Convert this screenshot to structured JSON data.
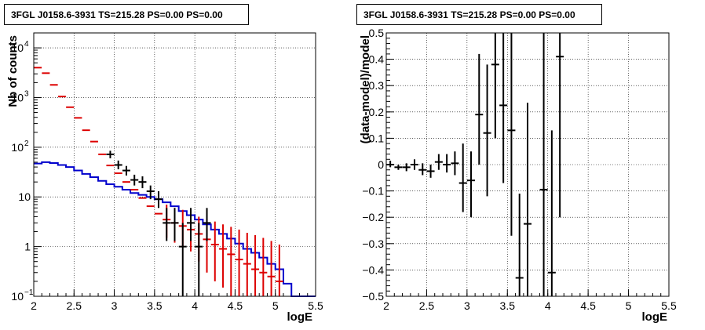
{
  "panels": [
    {
      "title": "3FGL J0158.6-3931 TS=215.28 PS=0.00 PS=0.00"
    },
    {
      "title": "3FGL J0158.6-3931 TS=215.28 PS=0.00 PS=0.00"
    }
  ],
  "chart_data": [
    {
      "type": "line",
      "xlabel": "logE",
      "ylabel": "Nb of counts",
      "log_y": true,
      "xlim": [
        2,
        5.5
      ],
      "ylim": [
        0.1,
        20000
      ],
      "grid": true,
      "x_ticks": [
        "2",
        "2.5",
        "3",
        "3.5",
        "4",
        "4.5",
        "5",
        "5.5"
      ],
      "y_ticks": [
        "10^-1",
        "1",
        "10",
        "10^2",
        "10^3",
        "10^4"
      ],
      "bin_edges": [
        2.0,
        2.1,
        2.2,
        2.3,
        2.4,
        2.5,
        2.6,
        2.7,
        2.8,
        2.9,
        3.0,
        3.1,
        3.2,
        3.3,
        3.4,
        3.5,
        3.6,
        3.7,
        3.8,
        3.9,
        4.0,
        4.1,
        4.2,
        4.3,
        4.4,
        4.5,
        4.6,
        4.7,
        4.8,
        4.9,
        5.0,
        5.1,
        5.2,
        5.3,
        5.4,
        5.5
      ],
      "series": [
        {
          "color": "#0000cc",
          "values": [
            47,
            50,
            48,
            44,
            40,
            34,
            29,
            25,
            21,
            18,
            16,
            14,
            12,
            11,
            10,
            9,
            7.8,
            6.5,
            5.2,
            4.3,
            3.5,
            2.8,
            2.2,
            1.8,
            1.45,
            1.15,
            0.9,
            0.75,
            0.6,
            0.45,
            0.35,
            0.18,
            0.1,
            0.1,
            0.1
          ]
        },
        {
          "color": "#dd0000",
          "points": [
            {
              "x": 2.05,
              "y": 4000
            },
            {
              "x": 2.15,
              "y": 3100
            },
            {
              "x": 2.25,
              "y": 1800
            },
            {
              "x": 2.35,
              "y": 1050
            },
            {
              "x": 2.45,
              "y": 640
            },
            {
              "x": 2.55,
              "y": 390
            },
            {
              "x": 2.65,
              "y": 220
            },
            {
              "x": 2.75,
              "y": 130
            },
            {
              "x": 2.85,
              "y": 72
            },
            {
              "x": 2.95,
              "y": 43
            },
            {
              "x": 3.05,
              "y": 30
            },
            {
              "x": 3.15,
              "y": 20
            },
            {
              "x": 3.25,
              "y": 14
            },
            {
              "x": 3.35,
              "y": 9.5
            },
            {
              "x": 3.45,
              "y": 6.5
            },
            {
              "x": 3.55,
              "y": 4.6
            },
            {
              "x": 3.65,
              "y": 3.5,
              "lo": 1.5,
              "hi": 7
            },
            {
              "x": 3.75,
              "y": 3,
              "lo": 1.2,
              "hi": 6
            },
            {
              "x": 3.85,
              "y": 2.6,
              "lo": 1,
              "hi": 5.5
            },
            {
              "x": 3.95,
              "y": 2.2,
              "lo": 0.8,
              "hi": 4.8
            },
            {
              "x": 4.05,
              "y": 1.8,
              "lo": 0.5,
              "hi": 4
            },
            {
              "x": 4.15,
              "y": 1.4,
              "lo": 0.3,
              "hi": 3.6
            },
            {
              "x": 4.25,
              "y": 1.1,
              "lo": 0.2,
              "hi": 3.2
            },
            {
              "x": 4.35,
              "y": 0.9,
              "lo": 0.15,
              "hi": 2.8
            },
            {
              "x": 4.45,
              "y": 0.7,
              "lo": 0.1,
              "hi": 2.5
            },
            {
              "x": 4.55,
              "y": 0.55,
              "lo": 0.1,
              "hi": 2.2
            },
            {
              "x": 4.65,
              "y": 0.45,
              "lo": 0.1,
              "hi": 1.9
            },
            {
              "x": 4.75,
              "y": 0.35,
              "lo": 0.1,
              "hi": 1.7
            },
            {
              "x": 4.85,
              "y": 0.3,
              "lo": 0.1,
              "hi": 1.5
            },
            {
              "x": 4.95,
              "y": 0.25,
              "lo": 0.1,
              "hi": 1.3
            },
            {
              "x": 5.05,
              "y": 0.2,
              "lo": 0.1,
              "hi": 1.1
            }
          ]
        },
        {
          "color": "#000000",
          "points": [
            {
              "x": 2.95,
              "y": 72,
              "lo": 60,
              "hi": 85
            },
            {
              "x": 3.05,
              "y": 44,
              "lo": 36,
              "hi": 54
            },
            {
              "x": 3.15,
              "y": 34,
              "lo": 27,
              "hi": 42
            },
            {
              "x": 3.25,
              "y": 22,
              "lo": 17,
              "hi": 28
            },
            {
              "x": 3.35,
              "y": 20,
              "lo": 15,
              "hi": 26
            },
            {
              "x": 3.45,
              "y": 13,
              "lo": 9,
              "hi": 17
            },
            {
              "x": 3.55,
              "y": 9,
              "lo": 6,
              "hi": 13
            },
            {
              "x": 3.65,
              "y": 3,
              "lo": 1.3,
              "hi": 6
            },
            {
              "x": 3.75,
              "y": 3,
              "lo": 1.3,
              "hi": 6
            },
            {
              "x": 3.85,
              "y": 1,
              "lo": 0.1,
              "hi": 3
            },
            {
              "x": 3.95,
              "y": 3,
              "lo": 1.3,
              "hi": 6
            },
            {
              "x": 4.05,
              "y": 1,
              "lo": 0.1,
              "hi": 3
            },
            {
              "x": 4.15,
              "y": 3,
              "lo": 1.3,
              "hi": 6
            }
          ]
        }
      ]
    },
    {
      "type": "scatter",
      "xlabel": "logE",
      "ylabel": "(data-model)/model",
      "xlim": [
        2,
        5.5
      ],
      "ylim": [
        -0.5,
        0.5
      ],
      "grid": true,
      "x_ticks": [
        "2",
        "2.5",
        "3",
        "3.5",
        "4",
        "4.5",
        "5",
        "5.5"
      ],
      "y_ticks": [
        "−0.5",
        "−0.4",
        "−0.3",
        "−0.2",
        "−0.1",
        "0",
        "0.1",
        "0.2",
        "0.3",
        "0.4",
        "0.5"
      ],
      "series": [
        {
          "color": "#000000",
          "points": [
            {
              "x": 2.05,
              "y": 0.0,
              "lo": -0.01,
              "hi": 0.015
            },
            {
              "x": 2.15,
              "y": -0.01,
              "lo": -0.02,
              "hi": 0.0
            },
            {
              "x": 2.25,
              "y": -0.01,
              "lo": -0.025,
              "hi": 0.005
            },
            {
              "x": 2.35,
              "y": 0.0,
              "lo": -0.02,
              "hi": 0.02
            },
            {
              "x": 2.45,
              "y": -0.02,
              "lo": -0.04,
              "hi": 0.005
            },
            {
              "x": 2.55,
              "y": -0.025,
              "lo": -0.05,
              "hi": 0.0
            },
            {
              "x": 2.65,
              "y": 0.01,
              "lo": -0.02,
              "hi": 0.04
            },
            {
              "x": 2.75,
              "y": 0.0,
              "lo": -0.03,
              "hi": 0.04
            },
            {
              "x": 2.85,
              "y": 0.005,
              "lo": -0.04,
              "hi": 0.05
            },
            {
              "x": 2.95,
              "y": -0.07,
              "lo": -0.18,
              "hi": 0.08
            },
            {
              "x": 3.05,
              "y": -0.06,
              "lo": -0.2,
              "hi": 0.05
            },
            {
              "x": 3.15,
              "y": 0.19,
              "lo": 0.0,
              "hi": 0.42
            },
            {
              "x": 3.25,
              "y": 0.12,
              "lo": -0.12,
              "hi": 0.38
            },
            {
              "x": 3.35,
              "y": 0.38,
              "lo": 0.1,
              "hi": 0.5
            },
            {
              "x": 3.45,
              "y": 0.225,
              "lo": -0.07,
              "hi": 0.5
            },
            {
              "x": 3.55,
              "y": 0.13,
              "lo": -0.27,
              "hi": 0.5
            },
            {
              "x": 3.65,
              "y": -0.43,
              "lo": -0.5,
              "hi": -0.11
            },
            {
              "x": 3.75,
              "y": -0.225,
              "lo": -0.5,
              "hi": 0.235
            },
            {
              "x": 3.95,
              "y": -0.095,
              "lo": -0.5,
              "hi": 0.5
            },
            {
              "x": 4.05,
              "y": -0.41,
              "lo": -0.5,
              "hi": 0.13
            },
            {
              "x": 4.15,
              "y": 0.41,
              "lo": -0.2,
              "hi": 0.5
            }
          ]
        }
      ]
    }
  ]
}
